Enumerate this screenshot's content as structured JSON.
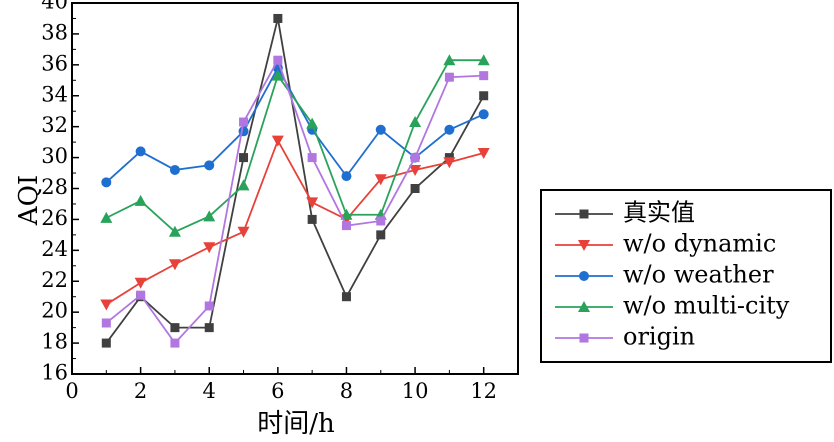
{
  "chart_data": {
    "type": "line",
    "xlabel": "时间/h",
    "ylabel": "AQI",
    "xlim": [
      0,
      13
    ],
    "ylim": [
      16,
      40
    ],
    "xticks": [
      0,
      2,
      4,
      6,
      8,
      10,
      12
    ],
    "yticks": [
      16,
      18,
      20,
      22,
      24,
      26,
      28,
      30,
      32,
      34,
      36,
      38,
      40
    ],
    "x": [
      1,
      2,
      3,
      4,
      5,
      6,
      7,
      8,
      9,
      10,
      11,
      12
    ],
    "grid": false,
    "legend_position": "right",
    "series": [
      {
        "name": "真实值",
        "color": "#404040",
        "marker": "square",
        "values": [
          18,
          21,
          19,
          19,
          30,
          39,
          26,
          21,
          25,
          28,
          30,
          34
        ]
      },
      {
        "name": "w/o dynamic",
        "color": "#e8413a",
        "marker": "triangle-down",
        "values": [
          20.5,
          21.9,
          23.1,
          24.2,
          25.2,
          31.1,
          27.1,
          26,
          28.6,
          29.2,
          29.7,
          30.3
        ]
      },
      {
        "name": "w/o weather",
        "color": "#1f6fd1",
        "marker": "circle",
        "values": [
          28.4,
          30.4,
          29.2,
          29.5,
          31.7,
          35.8,
          31.8,
          28.8,
          31.8,
          30,
          31.8,
          32.8
        ]
      },
      {
        "name": "w/o multi-city",
        "color": "#2aa35a",
        "marker": "triangle-up",
        "values": [
          26.1,
          27.2,
          25.2,
          26.2,
          28.2,
          35.3,
          32.2,
          26.3,
          26.3,
          32.3,
          36.3,
          36.3
        ]
      },
      {
        "name": "origin",
        "color": "#b276e0",
        "marker": "square",
        "values": [
          19.3,
          21.1,
          18,
          20.4,
          32.3,
          36.3,
          30,
          25.6,
          25.9,
          30,
          35.2,
          35.3
        ]
      }
    ]
  }
}
